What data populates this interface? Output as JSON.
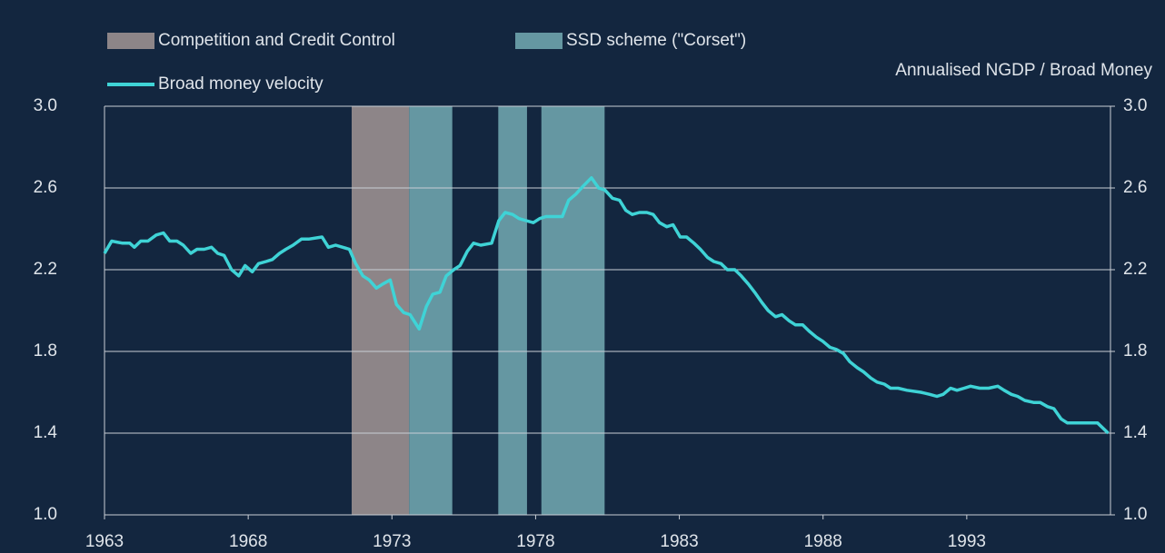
{
  "chart_data": {
    "type": "line",
    "y2_label": "Annualised NGDP / Broad Money",
    "series": [
      {
        "name": "Broad money velocity",
        "color": "#3fd3d6",
        "x": [
          1963.0,
          1963.25,
          1963.63,
          1963.88,
          1964.04,
          1964.26,
          1964.51,
          1964.8,
          1965.05,
          1965.27,
          1965.52,
          1965.74,
          1966.0,
          1966.22,
          1966.47,
          1966.72,
          1966.94,
          1967.16,
          1967.42,
          1967.67,
          1967.89,
          1968.14,
          1968.36,
          1968.62,
          1968.84,
          1969.09,
          1969.31,
          1969.56,
          1969.85,
          1970.1,
          1970.57,
          1970.79,
          1971.04,
          1971.52,
          1971.74,
          1971.99,
          1972.21,
          1972.46,
          1972.68,
          1972.94,
          1973.16,
          1973.41,
          1973.63,
          1973.95,
          1974.2,
          1974.42,
          1974.67,
          1974.89,
          1975.15,
          1975.37,
          1975.62,
          1975.84,
          1976.09,
          1976.47,
          1976.72,
          1976.94,
          1977.2,
          1977.42,
          1977.67,
          1977.92,
          1978.14,
          1978.36,
          1978.62,
          1978.93,
          1979.15,
          1979.4,
          1979.66,
          1979.94,
          1980.19,
          1980.41,
          1980.67,
          1980.92,
          1981.14,
          1981.36,
          1981.61,
          1981.87,
          1982.09,
          1982.31,
          1982.56,
          1982.78,
          1983.03,
          1983.25,
          1983.51,
          1983.73,
          1983.98,
          1984.2,
          1984.45,
          1984.67,
          1984.93,
          1985.15,
          1985.4,
          1985.62,
          1985.87,
          1986.09,
          1986.35,
          1986.57,
          1986.82,
          1987.04,
          1987.29,
          1987.51,
          1987.77,
          1987.99,
          1988.24,
          1988.46,
          1988.71,
          1988.93,
          1989.19,
          1989.41,
          1989.66,
          1989.88,
          1990.13,
          1990.35,
          1990.61,
          1990.92,
          1991.4,
          1991.71,
          1991.96,
          1992.18,
          1992.44,
          1992.66,
          1992.91,
          1993.13,
          1993.45,
          1993.76,
          1994.08,
          1994.3,
          1994.55,
          1994.77,
          1995.02,
          1995.34,
          1995.56,
          1995.81,
          1996.03,
          1996.28,
          1996.5,
          1996.76,
          1996.98,
          1997.23,
          1997.55,
          1997.92
        ],
        "values": [
          2.28,
          2.34,
          2.33,
          2.33,
          2.31,
          2.34,
          2.34,
          2.37,
          2.38,
          2.34,
          2.34,
          2.32,
          2.28,
          2.3,
          2.3,
          2.31,
          2.28,
          2.27,
          2.2,
          2.17,
          2.22,
          2.19,
          2.23,
          2.24,
          2.25,
          2.28,
          2.3,
          2.32,
          2.35,
          2.35,
          2.36,
          2.31,
          2.32,
          2.3,
          2.23,
          2.17,
          2.15,
          2.11,
          2.13,
          2.15,
          2.03,
          1.99,
          1.98,
          1.91,
          2.02,
          2.08,
          2.09,
          2.17,
          2.2,
          2.22,
          2.29,
          2.33,
          2.32,
          2.33,
          2.44,
          2.48,
          2.47,
          2.45,
          2.44,
          2.43,
          2.45,
          2.46,
          2.46,
          2.46,
          2.54,
          2.57,
          2.61,
          2.65,
          2.6,
          2.59,
          2.55,
          2.54,
          2.49,
          2.47,
          2.48,
          2.48,
          2.47,
          2.43,
          2.41,
          2.42,
          2.36,
          2.36,
          2.33,
          2.3,
          2.26,
          2.24,
          2.23,
          2.2,
          2.2,
          2.17,
          2.13,
          2.09,
          2.04,
          2.0,
          1.97,
          1.98,
          1.95,
          1.93,
          1.93,
          1.9,
          1.87,
          1.85,
          1.82,
          1.81,
          1.79,
          1.75,
          1.72,
          1.7,
          1.67,
          1.65,
          1.64,
          1.62,
          1.62,
          1.61,
          1.6,
          1.59,
          1.58,
          1.59,
          1.62,
          1.61,
          1.62,
          1.63,
          1.62,
          1.62,
          1.63,
          1.61,
          1.59,
          1.58,
          1.56,
          1.55,
          1.55,
          1.53,
          1.52,
          1.47,
          1.45,
          1.45,
          1.45,
          1.45,
          1.45,
          1.4
        ]
      }
    ],
    "shaded_regions": [
      {
        "name": "Competition and Credit Control",
        "color": "#8d8588",
        "ranges": [
          [
            1971.6,
            1973.6
          ]
        ]
      },
      {
        "name": "SSD scheme (\"Corset\")",
        "color": "#6597a2",
        "ranges": [
          [
            1973.6,
            1975.1
          ],
          [
            1976.7,
            1977.7
          ],
          [
            1978.2,
            1980.4
          ]
        ]
      }
    ],
    "xlim": [
      1963,
      1998
    ],
    "xticks": [
      1963,
      1968,
      1973,
      1978,
      1983,
      1988,
      1993
    ],
    "ylim": [
      1,
      3
    ],
    "yticks": [
      {
        "value": 1,
        "label": "1.0"
      },
      1.4,
      1.8,
      2.2,
      2.6,
      {
        "value": 3,
        "label": "3.0"
      }
    ],
    "y2lim": [
      1,
      3
    ],
    "y2ticks": [
      {
        "value": 1,
        "label": "1.0"
      },
      1.4,
      1.8,
      2.2,
      2.6,
      {
        "value": 3,
        "label": "3.0"
      }
    ],
    "grid": true
  }
}
